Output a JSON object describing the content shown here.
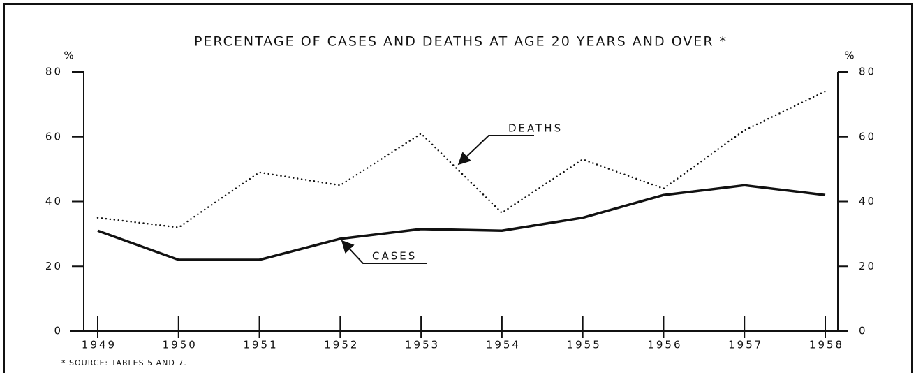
{
  "chart_data": {
    "type": "line",
    "title": "PERCENTAGE OF CASES AND DEATHS AT AGE 20 YEARS AND OVER *",
    "y_label": "%",
    "y2_label": "%",
    "categories": [
      "1949",
      "1950",
      "1951",
      "1952",
      "1953",
      "1954",
      "1955",
      "1956",
      "1957",
      "1958"
    ],
    "series": [
      {
        "name": "CASES",
        "color": "#111111",
        "style": "solid",
        "axis": "y",
        "values": [
          31,
          22,
          22,
          28.5,
          31.5,
          31,
          35,
          42,
          45,
          42
        ]
      },
      {
        "name": "DEATHS",
        "color": "#111111",
        "style": "dotted",
        "axis": "y",
        "values": [
          35,
          32,
          49,
          45,
          61,
          36.5,
          53,
          44,
          62,
          74
        ]
      }
    ],
    "ylim": [
      0,
      80
    ],
    "yticks": [
      0,
      20,
      40,
      60,
      80
    ],
    "y2lim": [
      0,
      80
    ],
    "y2ticks": [
      0,
      20,
      40,
      60,
      80
    ],
    "grid": false,
    "footnote": "* SOURCE: TABLES 5 AND 7."
  }
}
